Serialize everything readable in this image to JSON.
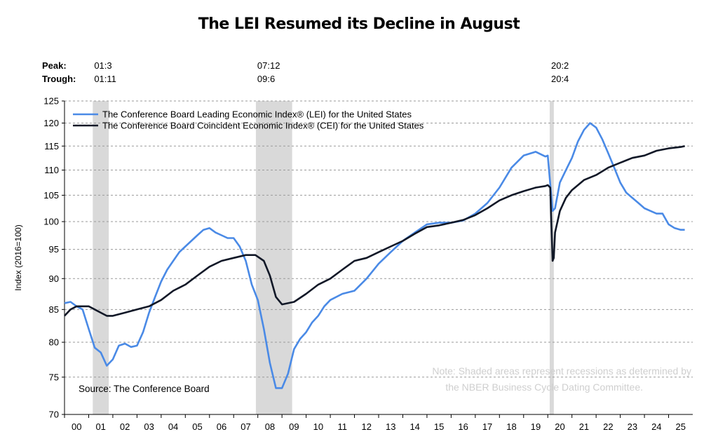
{
  "chart_data": {
    "type": "line",
    "title": "The LEI Resumed its Decline in August",
    "ylabel": "Index (2016=100)",
    "xlabel": "",
    "y_scale": "log",
    "ylim": [
      70,
      125
    ],
    "y_ticks": [
      70,
      75,
      80,
      85,
      90,
      95,
      100,
      105,
      110,
      115,
      120,
      125
    ],
    "x_tick_labels": [
      "00",
      "01",
      "02",
      "03",
      "04",
      "05",
      "06",
      "07",
      "08",
      "09",
      "10",
      "11",
      "12",
      "13",
      "14",
      "15",
      "16",
      "17",
      "18",
      "19",
      "20",
      "21",
      "22",
      "23",
      "24",
      "25"
    ],
    "grid": true,
    "legend_position": "top-left",
    "peak_label": "Peak:",
    "trough_label": "Trough:",
    "recessions": [
      {
        "peak": "01:3",
        "trough": "01:11",
        "start": 2001.17,
        "end": 2001.83
      },
      {
        "peak": "07:12",
        "trough": "09:6",
        "start": 2007.92,
        "end": 2009.42
      },
      {
        "peak": "20:2",
        "trough": "20:4",
        "start": 2020.08,
        "end": 2020.25
      }
    ],
    "series": [
      {
        "name": "The Conference Board Leading Economic Index® (LEI) for the United States",
        "color": "#4a8ae6",
        "x": [
          2000.0,
          2000.25,
          2000.5,
          2000.75,
          2001.0,
          2001.25,
          2001.5,
          2001.75,
          2002.0,
          2002.25,
          2002.5,
          2002.75,
          2003.0,
          2003.25,
          2003.5,
          2003.75,
          2004.0,
          2004.25,
          2004.5,
          2004.75,
          2005.0,
          2005.25,
          2005.5,
          2005.75,
          2006.0,
          2006.25,
          2006.5,
          2006.75,
          2007.0,
          2007.25,
          2007.5,
          2007.75,
          2008.0,
          2008.25,
          2008.5,
          2008.75,
          2009.0,
          2009.25,
          2009.5,
          2009.75,
          2010.0,
          2010.25,
          2010.5,
          2010.75,
          2011.0,
          2011.5,
          2012.0,
          2012.5,
          2013.0,
          2013.5,
          2014.0,
          2014.5,
          2015.0,
          2015.5,
          2016.0,
          2016.5,
          2017.0,
          2017.5,
          2018.0,
          2018.5,
          2019.0,
          2019.5,
          2019.9,
          2020.0,
          2020.2,
          2020.3,
          2020.5,
          2020.75,
          2021.0,
          2021.25,
          2021.5,
          2021.75,
          2022.0,
          2022.25,
          2022.5,
          2022.75,
          2023.0,
          2023.25,
          2023.5,
          2023.75,
          2024.0,
          2024.25,
          2024.5,
          2024.75,
          2025.0,
          2025.25,
          2025.5,
          2025.67
        ],
        "values": [
          86.0,
          86.2,
          85.5,
          85.0,
          82.0,
          79.2,
          78.5,
          76.6,
          77.5,
          79.5,
          79.8,
          79.3,
          79.5,
          81.5,
          84.5,
          87.0,
          89.5,
          91.5,
          93.0,
          94.5,
          95.5,
          96.5,
          97.5,
          98.5,
          98.8,
          98.0,
          97.5,
          97.0,
          97.0,
          95.5,
          93.0,
          89.0,
          86.5,
          82.0,
          77.0,
          73.5,
          73.5,
          75.5,
          79.0,
          80.5,
          81.5,
          83.0,
          84.0,
          85.5,
          86.5,
          87.5,
          88.0,
          90.0,
          92.5,
          94.5,
          96.5,
          98.0,
          99.5,
          99.8,
          99.8,
          100.2,
          101.5,
          103.5,
          106.5,
          110.5,
          113.0,
          113.8,
          112.8,
          113.0,
          102.0,
          102.5,
          107.5,
          110.0,
          112.5,
          116.0,
          118.5,
          120.0,
          119.0,
          116.5,
          113.5,
          110.5,
          107.5,
          105.5,
          104.5,
          103.5,
          102.5,
          102.0,
          101.5,
          101.5,
          99.5,
          98.8,
          98.5,
          98.5
        ]
      },
      {
        "name": "The Conference Board Coincident Economic Index® (CEI) for the United States",
        "color": "#111827",
        "x": [
          2000.0,
          2000.25,
          2000.5,
          2000.75,
          2001.0,
          2001.25,
          2001.5,
          2001.75,
          2002.0,
          2002.5,
          2003.0,
          2003.5,
          2004.0,
          2004.5,
          2005.0,
          2005.5,
          2006.0,
          2006.5,
          2007.0,
          2007.5,
          2007.9,
          2008.25,
          2008.5,
          2008.75,
          2009.0,
          2009.5,
          2010.0,
          2010.5,
          2011.0,
          2011.5,
          2012.0,
          2012.5,
          2013.0,
          2013.5,
          2014.0,
          2014.5,
          2015.0,
          2015.5,
          2016.0,
          2016.5,
          2017.0,
          2017.5,
          2018.0,
          2018.5,
          2019.0,
          2019.5,
          2019.9,
          2020.0,
          2020.1,
          2020.2,
          2020.25,
          2020.3,
          2020.5,
          2020.75,
          2021.0,
          2021.5,
          2022.0,
          2022.5,
          2023.0,
          2023.5,
          2024.0,
          2024.5,
          2025.0,
          2025.5,
          2025.67
        ],
        "values": [
          84.0,
          85.0,
          85.5,
          85.5,
          85.5,
          85.0,
          84.5,
          84.0,
          84.0,
          84.5,
          85.0,
          85.5,
          86.5,
          88.0,
          89.0,
          90.5,
          92.0,
          93.0,
          93.5,
          94.0,
          94.0,
          93.0,
          90.5,
          87.0,
          85.8,
          86.2,
          87.5,
          89.0,
          90.0,
          91.5,
          93.0,
          93.5,
          94.5,
          95.5,
          96.5,
          97.8,
          99.0,
          99.3,
          99.8,
          100.3,
          101.2,
          102.5,
          104.0,
          105.0,
          105.8,
          106.5,
          106.8,
          107.0,
          106.5,
          93.0,
          93.5,
          98.0,
          102.0,
          104.5,
          106.0,
          108.0,
          109.0,
          110.5,
          111.5,
          112.5,
          113.0,
          114.0,
          114.5,
          114.8,
          115.0
        ]
      }
    ],
    "annotations": {
      "source": "Source: The Conference Board",
      "note_line1": "Note: Shaded areas represent recessions as determined by",
      "note_line2": "the NBER Business Cycle Dating Committee."
    },
    "colors": {
      "recession_shade": "#d9d9d9",
      "grid": "#9a9a9a",
      "axis": "#000000",
      "note_text": "#cfcfcf"
    }
  }
}
